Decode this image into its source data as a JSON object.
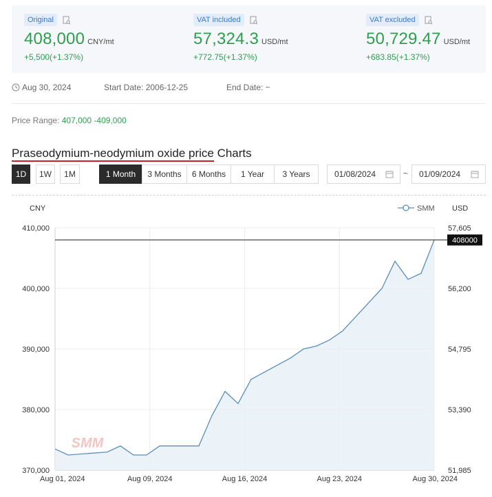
{
  "prices": [
    {
      "tag": "Original",
      "value": "408,000",
      "unit": "CNY/mt",
      "change": "+5,500(+1.37%)"
    },
    {
      "tag": "VAT included",
      "value": "57,324.3",
      "unit": "USD/mt",
      "change": "+772.75(+1.37%)"
    },
    {
      "tag": "VAT excluded",
      "value": "50,729.47",
      "unit": "USD/mt",
      "change": "+683.85(+1.37%)"
    }
  ],
  "meta": {
    "date": "Aug 30, 2024",
    "start_label": "Start Date:",
    "start_value": "2006-12-25",
    "end_label": "End Date:",
    "end_value": "~"
  },
  "range": {
    "label": "Price Range:",
    "value": "407,000 -409,000"
  },
  "title": {
    "underlined": "Praseodymium-neodymium oxide price",
    "rest": " Charts"
  },
  "period_buttons": [
    "1D",
    "1W",
    "1M"
  ],
  "range_buttons": [
    "1 Month",
    "3 Months",
    "6 Months",
    "1 Year",
    "3 Years"
  ],
  "date_from": "01/08/2024",
  "date_sep": "~",
  "date_to": "01/09/2024",
  "colors": {
    "green": "#2e9e4f",
    "line": "#5b8db8",
    "area": "#e8f0f7",
    "active": "#2b2b2b",
    "underline": "#c8201e"
  },
  "chart_data": {
    "type": "area",
    "left_unit": "CNY",
    "right_unit": "USD",
    "legend": "SMM",
    "watermark": "SMM",
    "x_ticks": [
      "Aug 01, 2024",
      "Aug 09, 2024",
      "Aug 16, 2024",
      "Aug 23, 2024",
      "Aug 30, 2024"
    ],
    "y_ticks_left": [
      "410,000",
      "400,000",
      "390,000",
      "380,000",
      "370,000"
    ],
    "y_ticks_right": [
      "57,605",
      "56,200",
      "54,795",
      "53,390",
      "51,985"
    ],
    "ylim": [
      370000,
      410000
    ],
    "series": [
      {
        "x": [
          "2024-08-01",
          "2024-08-02",
          "2024-08-05",
          "2024-08-06",
          "2024-08-07",
          "2024-08-08",
          "2024-08-09",
          "2024-08-12",
          "2024-08-13",
          "2024-08-14",
          "2024-08-15",
          "2024-08-16",
          "2024-08-19",
          "2024-08-20",
          "2024-08-21",
          "2024-08-22",
          "2024-08-23",
          "2024-08-26",
          "2024-08-27",
          "2024-08-28",
          "2024-08-29",
          "2024-08-30"
        ],
        "values": [
          373500,
          372500,
          373000,
          374000,
          372500,
          372500,
          374000,
          374000,
          379000,
          383000,
          381000,
          385000,
          388500,
          390000,
          390500,
          391500,
          393000,
          400000,
          404500,
          401500,
          402500,
          408000
        ]
      }
    ],
    "reference_label": "408000"
  }
}
